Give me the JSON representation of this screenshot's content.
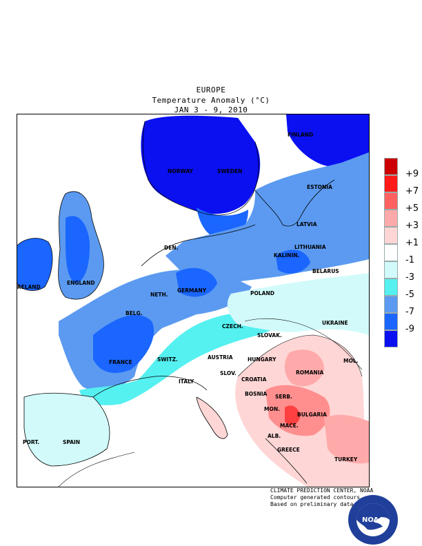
{
  "header": {
    "line1": "EUROPE",
    "line2": "Temperature Anomaly (°C)",
    "line3": "JAN 3 - 9, 2010"
  },
  "legend": {
    "colors": [
      "#cc0000",
      "#ff1a1a",
      "#ff6060",
      "#ffaaaa",
      "#ffd6d6",
      "#ffffff",
      "#d2fafa",
      "#55f0f0",
      "#5b9af0",
      "#1a66ff",
      "#0a10f0"
    ],
    "ticks": [
      "+9",
      "+7",
      "+5",
      "+3",
      "+1",
      "-1",
      "-3",
      "-5",
      "-7",
      "-9"
    ]
  },
  "labels": {
    "finland": "FINLAND",
    "norway": "NORWAY",
    "sweden": "SWEDEN",
    "estonia": "ESTONIA",
    "latvia": "LATVIA",
    "lithuania": "LITHUANIA",
    "kalinin": "KALININ.",
    "den": "DEN.",
    "belarus": "BELARUS",
    "ireland": "IRELAND",
    "england": "ENGLAND",
    "neth": "NETH.",
    "germany": "GERMANY",
    "poland": "POLAND",
    "belg": "BELG.",
    "ukraine": "UKRAINE",
    "czech": "CZECH.",
    "slovak": "SLOVAK.",
    "france": "FRANCE",
    "switz": "SWITZ.",
    "austria": "AUSTRIA",
    "hungary": "HUNGARY",
    "mol": "MOL.",
    "slov": "SLOV.",
    "croatia": "CROATIA",
    "romania": "ROMANIA",
    "italy": "ITALY",
    "bosnia": "BOSNIA",
    "serb": "SERB.",
    "mon": "MON.",
    "bulgaria": "BULGARIA",
    "mace": "MACE.",
    "alb": "ALB.",
    "greece": "GREECE",
    "turkey": "TURKEY",
    "port": "PORT.",
    "spain": "SPAIN"
  },
  "credits": {
    "line1": "CLIMATE PREDICTION CENTER, NOAA",
    "line2": "Computer generated contours",
    "line3": "Based on preliminary data"
  },
  "logo": {
    "text": "NOAA"
  }
}
